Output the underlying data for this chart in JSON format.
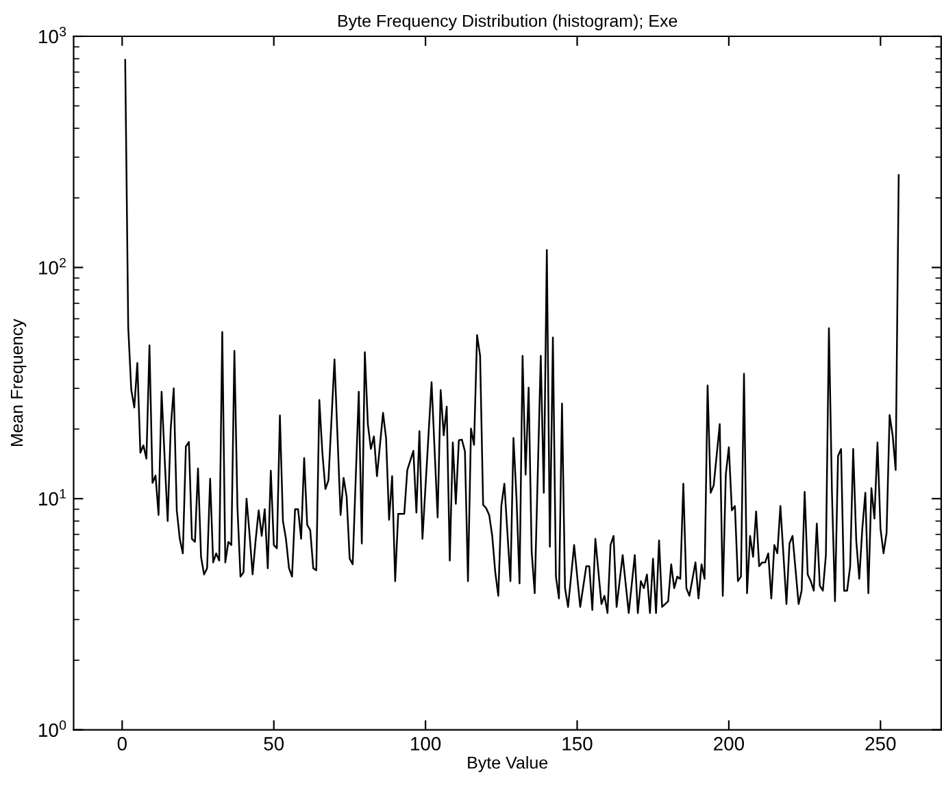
{
  "chart_data": {
    "type": "line",
    "title": "Byte Frequency Distribution (histogram); Exe",
    "xlabel": "Byte Value",
    "ylabel": "Mean Frequency",
    "log": "y",
    "grid": false,
    "marker": "none",
    "line_style": "solid",
    "xlim": [
      -16,
      270
    ],
    "ylim": [
      1,
      1000
    ],
    "xticks": [
      0,
      50,
      100,
      150,
      200,
      250
    ],
    "yticks": [
      {
        "value": 1,
        "label": "10$^{0}$"
      },
      {
        "value": 10,
        "label": "10$^{1}$"
      },
      {
        "value": 100,
        "label": "10$^{2}$"
      },
      {
        "value": 1000,
        "label": "10$^{3}$"
      }
    ],
    "series": [
      {
        "color": "#000000",
        "x": [
          1,
          2,
          3,
          4,
          5,
          6,
          7,
          8,
          9,
          10,
          11,
          12,
          13,
          14,
          15,
          16,
          17,
          18,
          19,
          20,
          21,
          22,
          23,
          24,
          25,
          26,
          27,
          28,
          29,
          30,
          31,
          32,
          33,
          34,
          35,
          36,
          37,
          38,
          39,
          40,
          41,
          42,
          43,
          44,
          45,
          46,
          47,
          48,
          49,
          50,
          51,
          52,
          53,
          54,
          55,
          56,
          57,
          58,
          59,
          60,
          61,
          62,
          63,
          64,
          65,
          66,
          67,
          68,
          70,
          72,
          73,
          74,
          75,
          76,
          78,
          79,
          80,
          81,
          82,
          83,
          84,
          86,
          87,
          88,
          89,
          90,
          91,
          92,
          93,
          94,
          96,
          97,
          98,
          99,
          102,
          104,
          105,
          106,
          107,
          108,
          109,
          110,
          111,
          112,
          113,
          114,
          115,
          116,
          117,
          118,
          119,
          120,
          121,
          122,
          123,
          124,
          125,
          126,
          128,
          129,
          130,
          131,
          132,
          133,
          134,
          135,
          136,
          138,
          139,
          140,
          141,
          142,
          143,
          144,
          145,
          146,
          147,
          149,
          151,
          153,
          154,
          155,
          156,
          158,
          159,
          160,
          161,
          162,
          163,
          165,
          167,
          169,
          170,
          171,
          172,
          173,
          174,
          175,
          176,
          177,
          178,
          180,
          181,
          182,
          183,
          184,
          185,
          186,
          187,
          189,
          190,
          191,
          192,
          193,
          194,
          195,
          197,
          198,
          199,
          200,
          201,
          202,
          203,
          204,
          205,
          206,
          207,
          208,
          209,
          210,
          211,
          212,
          213,
          214,
          215,
          216,
          217,
          219,
          220,
          221,
          223,
          224,
          225,
          226,
          227,
          228,
          229,
          230,
          231,
          232,
          233,
          234,
          235,
          236,
          237,
          238,
          239,
          240,
          241,
          242,
          243,
          244,
          245,
          246,
          247,
          248,
          249,
          250,
          251,
          252,
          253,
          254,
          255,
          256
        ],
        "values": [
          790,
          55,
          29.6,
          24.8,
          38.6,
          15.8,
          17,
          14.9,
          46,
          11.7,
          12.6,
          8.5,
          29,
          15,
          8,
          20,
          30,
          8.9,
          6.7,
          5.8,
          16.8,
          17.6,
          6.7,
          6.5,
          13.5,
          5.6,
          4.7,
          5.0,
          12.2,
          5.3,
          5.8,
          5.4,
          52.6,
          5.3,
          6.5,
          6.3,
          43.6,
          9.2,
          4.6,
          4.8,
          10,
          7,
          4.7,
          6.6,
          8.9,
          6.9,
          9,
          5,
          13.2,
          6.3,
          6.1,
          22.9,
          8,
          6.7,
          5,
          4.6,
          9,
          9,
          6.7,
          15,
          7.7,
          7.3,
          5,
          4.9,
          26.7,
          15.8,
          11,
          12,
          40,
          8.5,
          12.3,
          10.2,
          5.5,
          5.2,
          29,
          6.4,
          43,
          21,
          16.4,
          18.6,
          12.5,
          23.5,
          18.3,
          8.1,
          12.5,
          4.4,
          8.6,
          8.6,
          8.6,
          13.3,
          16.1,
          8.7,
          19.6,
          6.7,
          31.9,
          8.3,
          29.5,
          18.8,
          25,
          5.4,
          17.5,
          9.5,
          17.9,
          18,
          16,
          4.4,
          20.1,
          17.1,
          51,
          41.5,
          9.4,
          9.1,
          8.5,
          6.9,
          4.8,
          3.8,
          9.3,
          11.6,
          4.4,
          18.3,
          10.1,
          4.3,
          41.5,
          12.7,
          30.2,
          5.9,
          3.9,
          41.5,
          10.6,
          119,
          6.2,
          49.8,
          4.6,
          3.7,
          25.8,
          4.1,
          3.4,
          6.3,
          3.4,
          5.1,
          5.1,
          3.3,
          6.7,
          3.5,
          3.8,
          3.2,
          6.3,
          6.9,
          3.4,
          5.7,
          3.2,
          5.7,
          3.2,
          4.4,
          4.1,
          4.7,
          3.2,
          5.5,
          3.2,
          6.6,
          3.4,
          3.6,
          5.2,
          4.1,
          4.6,
          4.5,
          11.6,
          4.1,
          3.8,
          5.3,
          3.7,
          5.2,
          4.5,
          30.9,
          10.6,
          11.4,
          21,
          3.8,
          12.7,
          16.7,
          8.9,
          9.3,
          4.4,
          4.6,
          34.7,
          3.9,
          6.9,
          5.6,
          8.8,
          5.1,
          5.3,
          5.3,
          5.8,
          3.7,
          6.3,
          5.8,
          9.3,
          3.5,
          6.4,
          6.9,
          3.5,
          4.0,
          10.7,
          4.7,
          4.4,
          4.0,
          7.8,
          4.2,
          4.0,
          5.7,
          54.6,
          10.6,
          3.6,
          15.3,
          16.4,
          4.0,
          4.0,
          5.1,
          16.4,
          6.6,
          4.5,
          7.4,
          10.6,
          3.9,
          11.1,
          8.2,
          17.5,
          7.4,
          5.8,
          7.1,
          23,
          18.8,
          13.3,
          251
        ]
      }
    ]
  }
}
